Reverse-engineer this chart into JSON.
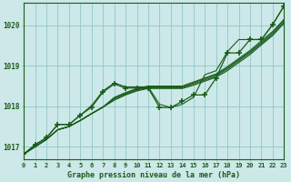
{
  "title": "Graphe pression niveau de la mer (hPa)",
  "bg_color": "#cce8e8",
  "grid_color": "#99cccc",
  "line_color": "#1a5c1a",
  "xlim": [
    0,
    23
  ],
  "ylim": [
    1016.7,
    1020.55
  ],
  "yticks": [
    1017,
    1018,
    1019,
    1020
  ],
  "xtick_labels": [
    "0",
    "1",
    "2",
    "3",
    "4",
    "5",
    "6",
    "7",
    "8",
    "9",
    "10",
    "11",
    "12",
    "13",
    "14",
    "15",
    "16",
    "17",
    "18",
    "19",
    "20",
    "21",
    "22",
    "23"
  ],
  "linear_series": [
    [
      1016.82,
      1017.0,
      1017.18,
      1017.42,
      1017.5,
      1017.65,
      1017.82,
      1017.98,
      1018.15,
      1018.28,
      1018.38,
      1018.44,
      1018.44,
      1018.44,
      1018.44,
      1018.52,
      1018.62,
      1018.72,
      1018.88,
      1019.08,
      1019.28,
      1019.52,
      1019.75,
      1020.05
    ],
    [
      1016.82,
      1017.0,
      1017.18,
      1017.42,
      1017.5,
      1017.65,
      1017.82,
      1017.98,
      1018.18,
      1018.3,
      1018.4,
      1018.46,
      1018.46,
      1018.46,
      1018.46,
      1018.55,
      1018.65,
      1018.75,
      1018.92,
      1019.12,
      1019.32,
      1019.55,
      1019.78,
      1020.08
    ],
    [
      1016.82,
      1017.0,
      1017.18,
      1017.42,
      1017.5,
      1017.65,
      1017.82,
      1017.98,
      1018.2,
      1018.32,
      1018.42,
      1018.48,
      1018.48,
      1018.48,
      1018.48,
      1018.58,
      1018.68,
      1018.78,
      1018.95,
      1019.15,
      1019.35,
      1019.58,
      1019.82,
      1020.12
    ],
    [
      1016.82,
      1017.0,
      1017.18,
      1017.42,
      1017.5,
      1017.65,
      1017.82,
      1017.98,
      1018.22,
      1018.34,
      1018.44,
      1018.5,
      1018.5,
      1018.5,
      1018.5,
      1018.6,
      1018.7,
      1018.8,
      1018.98,
      1019.18,
      1019.38,
      1019.62,
      1019.85,
      1020.15
    ]
  ],
  "marker_series": [
    1016.82,
    1017.05,
    1017.22,
    1017.55,
    1017.55,
    1017.78,
    1017.98,
    1018.35,
    1018.55,
    1018.45,
    1018.45,
    1018.45,
    1017.97,
    1017.97,
    1018.12,
    1018.28,
    1018.28,
    1018.7,
    1019.32,
    1019.32,
    1019.65,
    1019.65,
    1020.02,
    1020.48
  ],
  "wide_series": [
    1016.82,
    1017.05,
    1017.22,
    1017.55,
    1017.55,
    1017.78,
    1018.02,
    1018.38,
    1018.58,
    1018.48,
    1018.48,
    1018.48,
    1018.05,
    1017.97,
    1018.05,
    1018.22,
    1018.78,
    1018.88,
    1019.35,
    1019.65,
    1019.65,
    1019.65,
    1020.02,
    1020.48
  ]
}
